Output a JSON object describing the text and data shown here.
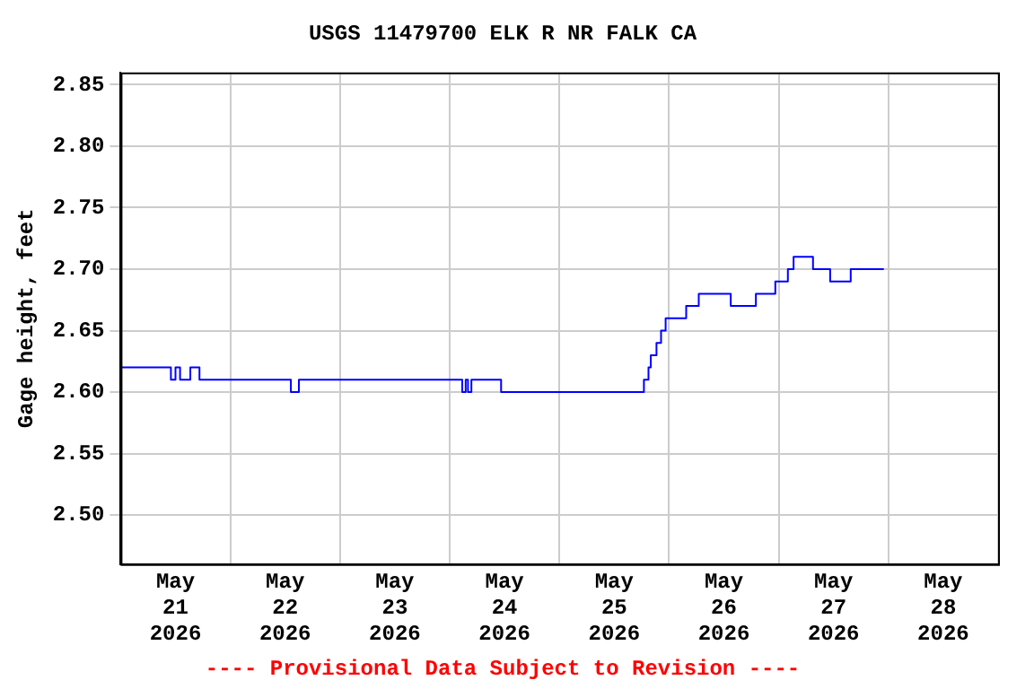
{
  "chart_data": {
    "type": "step",
    "title": "USGS 11479700 ELK R NR FALK CA",
    "ylabel": "Gage height, feet",
    "annotations": [
      "---- Provisional Data Subject to Revision ----"
    ],
    "x": [
      "2026-05-21T00:00",
      "2026-05-21T11:00",
      "2026-05-21T12:00",
      "2026-05-21T13:00",
      "2026-05-21T15:15",
      "2026-05-21T17:15",
      "2026-05-22T13:15",
      "2026-05-22T15:00",
      "2026-05-24T02:45",
      "2026-05-24T03:30",
      "2026-05-24T04:00",
      "2026-05-24T04:45",
      "2026-05-24T11:15",
      "2026-05-25T18:30",
      "2026-05-25T19:30",
      "2026-05-25T20:00",
      "2026-05-25T21:15",
      "2026-05-25T22:15",
      "2026-05-25T23:15",
      "2026-05-26T03:45",
      "2026-05-26T06:30",
      "2026-05-26T13:30",
      "2026-05-26T19:00",
      "2026-05-26T23:15",
      "2026-05-27T02:00",
      "2026-05-27T03:15",
      "2026-05-27T07:30",
      "2026-05-27T11:15",
      "2026-05-27T15:45",
      "2026-05-27T23:00"
    ],
    "series": [
      {
        "color": "#0000ff",
        "values": [
          2.62,
          2.61,
          2.62,
          2.61,
          2.62,
          2.61,
          2.6,
          2.61,
          2.6,
          2.61,
          2.6,
          2.61,
          2.6,
          2.61,
          2.62,
          2.63,
          2.64,
          2.65,
          2.66,
          2.67,
          2.68,
          2.67,
          2.68,
          2.69,
          2.7,
          2.71,
          2.7,
          2.69,
          2.7,
          2.7
        ]
      }
    ],
    "xlim": [
      "2026-05-21T00:00",
      "2026-05-29T00:00"
    ],
    "xticks": [
      {
        "value": "2026-05-21T00:00",
        "label": null
      },
      {
        "value": "2026-05-21T12:00",
        "label": "May 21 2026"
      },
      {
        "value": "2026-05-22T00:00",
        "label": null
      },
      {
        "value": "2026-05-22T12:00",
        "label": "May 22 2026"
      },
      {
        "value": "2026-05-23T00:00",
        "label": null
      },
      {
        "value": "2026-05-23T12:00",
        "label": "May 23 2026"
      },
      {
        "value": "2026-05-24T00:00",
        "label": null
      },
      {
        "value": "2026-05-24T12:00",
        "label": "May 24 2026"
      },
      {
        "value": "2026-05-25T00:00",
        "label": null
      },
      {
        "value": "2026-05-25T12:00",
        "label": "May 25 2026"
      },
      {
        "value": "2026-05-26T00:00",
        "label": null
      },
      {
        "value": "2026-05-26T12:00",
        "label": "May 26 2026"
      },
      {
        "value": "2026-05-27T00:00",
        "label": null
      },
      {
        "value": "2026-05-27T12:00",
        "label": "May 27 2026"
      },
      {
        "value": "2026-05-28T00:00",
        "label": null
      },
      {
        "value": "2026-05-28T12:00",
        "label": "May 28 2026"
      },
      {
        "value": "2026-05-29T00:00",
        "label": null
      }
    ],
    "ylim": [
      2.46,
      2.86
    ],
    "yticks": [
      {
        "value": 2.5,
        "label": "2.50"
      },
      {
        "value": 2.55,
        "label": "2.55"
      },
      {
        "value": 2.6,
        "label": "2.60"
      },
      {
        "value": 2.65,
        "label": "2.65"
      },
      {
        "value": 2.7,
        "label": "2.70"
      },
      {
        "value": 2.75,
        "label": "2.75"
      },
      {
        "value": 2.8,
        "label": "2.80"
      },
      {
        "value": 2.85,
        "label": "2.85"
      }
    ],
    "grid": true,
    "legend": false,
    "line_style": "solid",
    "marker": "none"
  }
}
